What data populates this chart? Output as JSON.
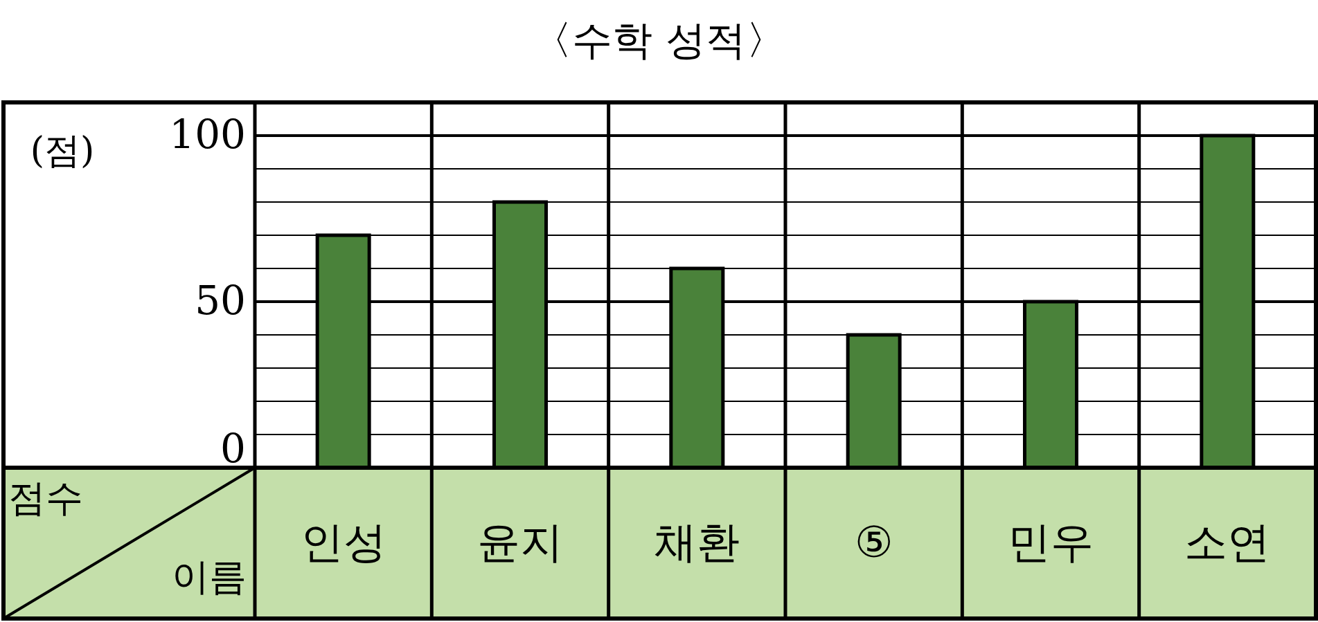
{
  "chart_data": {
    "type": "bar",
    "title": "〈수학 성적〉",
    "ylabel": "(점)",
    "categories": [
      "인성",
      "윤지",
      "채환",
      "⑤",
      "민우",
      "소연"
    ],
    "values": [
      70,
      80,
      60,
      40,
      50,
      100
    ],
    "color": "#4a823a",
    "ylim": [
      0,
      110
    ],
    "yticks": [
      0,
      {
        "value": 10,
        "label": null
      },
      {
        "value": 20,
        "label": null
      },
      {
        "value": 30,
        "label": null
      },
      {
        "value": 40,
        "label": null
      },
      50,
      {
        "value": 60,
        "label": null
      },
      {
        "value": 70,
        "label": null
      },
      {
        "value": 80,
        "label": null
      },
      {
        "value": 90,
        "label": null
      },
      100
    ],
    "grid": "y",
    "annotations": [
      "점수",
      "이름"
    ]
  }
}
